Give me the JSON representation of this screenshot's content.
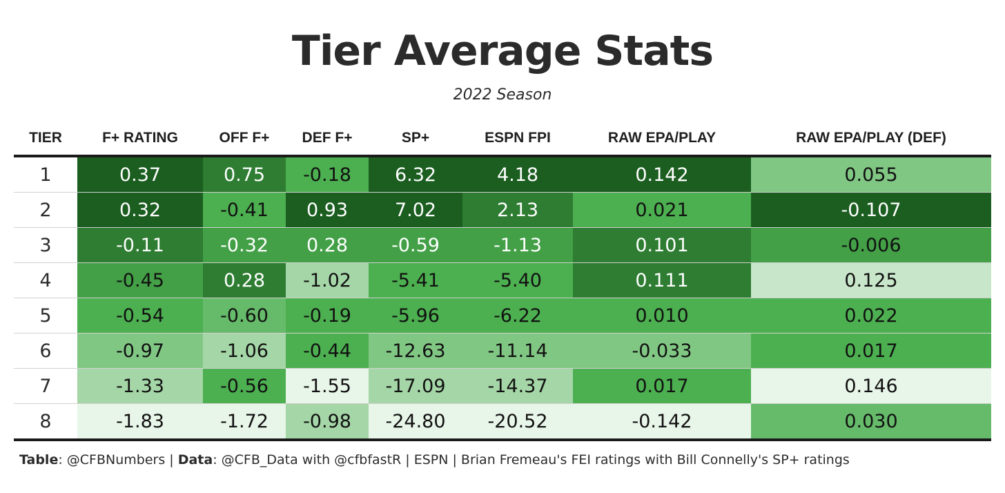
{
  "title": "Tier Average Stats",
  "subtitle": "2022 Season",
  "chart_data": {
    "type": "table",
    "title": "Tier Average Stats",
    "subtitle": "2022 Season",
    "columns": [
      "TIER",
      "F+ RATING",
      "OFF F+",
      "DEF F+",
      "SP+",
      "ESPN FPI",
      "RAW EPA/PLAY",
      "RAW EPA/PLAY (DEF)"
    ],
    "rows": [
      {
        "tier": "1",
        "values": [
          "0.37",
          "0.75",
          "-0.18",
          "6.32",
          "4.18",
          "0.142",
          "0.055"
        ]
      },
      {
        "tier": "2",
        "values": [
          "0.32",
          "-0.41",
          "0.93",
          "7.02",
          "2.13",
          "0.021",
          "-0.107"
        ]
      },
      {
        "tier": "3",
        "values": [
          "-0.11",
          "-0.32",
          "0.28",
          "-0.59",
          "-1.13",
          "0.101",
          "-0.006"
        ]
      },
      {
        "tier": "4",
        "values": [
          "-0.45",
          "0.28",
          "-1.02",
          "-5.41",
          "-5.40",
          "0.111",
          "0.125"
        ]
      },
      {
        "tier": "5",
        "values": [
          "-0.54",
          "-0.60",
          "-0.19",
          "-5.96",
          "-6.22",
          "0.010",
          "0.022"
        ]
      },
      {
        "tier": "6",
        "values": [
          "-0.97",
          "-1.06",
          "-0.44",
          "-12.63",
          "-11.14",
          "-0.033",
          "0.017"
        ]
      },
      {
        "tier": "7",
        "values": [
          "-1.33",
          "-0.56",
          "-1.55",
          "-17.09",
          "-14.37",
          "0.017",
          "0.146"
        ]
      },
      {
        "tier": "8",
        "values": [
          "-1.83",
          "-1.72",
          "-0.98",
          "-24.80",
          "-20.52",
          "-0.142",
          "0.030"
        ]
      }
    ],
    "cell_colors": [
      [
        "#1b5e20",
        "#2e7d32",
        "#4caf50",
        "#1b5e20",
        "#1b5e20",
        "#1b5e20",
        "#81c784"
      ],
      [
        "#1b5e20",
        "#4caf50",
        "#1b5e20",
        "#1b5e20",
        "#2e7d32",
        "#4caf50",
        "#1b5e20"
      ],
      [
        "#2e7d32",
        "#43a047",
        "#43a047",
        "#43a047",
        "#43a047",
        "#2e7d32",
        "#43a047"
      ],
      [
        "#43a047",
        "#2e7d32",
        "#a5d6a7",
        "#4caf50",
        "#4caf50",
        "#2e7d32",
        "#c8e6c9"
      ],
      [
        "#4caf50",
        "#66bb6a",
        "#4caf50",
        "#4caf50",
        "#4caf50",
        "#4caf50",
        "#4caf50"
      ],
      [
        "#81c784",
        "#a5d6a7",
        "#4caf50",
        "#81c784",
        "#81c784",
        "#81c784",
        "#4caf50"
      ],
      [
        "#a5d6a7",
        "#4caf50",
        "#e8f5e9",
        "#a5d6a7",
        "#a5d6a7",
        "#4caf50",
        "#e8f5e9"
      ],
      [
        "#e8f5e9",
        "#e8f5e9",
        "#a5d6a7",
        "#e8f5e9",
        "#e8f5e9",
        "#e8f5e9",
        "#66bb6a"
      ]
    ],
    "text_colors": [
      [
        "#ffffff",
        "#ffffff",
        "#111111",
        "#ffffff",
        "#ffffff",
        "#ffffff",
        "#111111"
      ],
      [
        "#ffffff",
        "#111111",
        "#ffffff",
        "#ffffff",
        "#ffffff",
        "#111111",
        "#ffffff"
      ],
      [
        "#ffffff",
        "#ffffff",
        "#ffffff",
        "#ffffff",
        "#ffffff",
        "#ffffff",
        "#111111"
      ],
      [
        "#111111",
        "#ffffff",
        "#111111",
        "#111111",
        "#111111",
        "#ffffff",
        "#111111"
      ],
      [
        "#111111",
        "#111111",
        "#111111",
        "#111111",
        "#111111",
        "#111111",
        "#111111"
      ],
      [
        "#111111",
        "#111111",
        "#111111",
        "#111111",
        "#111111",
        "#111111",
        "#111111"
      ],
      [
        "#111111",
        "#111111",
        "#111111",
        "#111111",
        "#111111",
        "#111111",
        "#111111"
      ],
      [
        "#111111",
        "#111111",
        "#111111",
        "#111111",
        "#111111",
        "#111111",
        "#111111"
      ]
    ]
  },
  "footer": {
    "table_label": "Table",
    "table_value": ": @CFBNumbers | ",
    "data_label": "Data",
    "data_value": ": @CFB_Data with @cfbfastR | ESPN | Brian Fremeau's FEI ratings with Bill Connelly's SP+ ratings"
  }
}
